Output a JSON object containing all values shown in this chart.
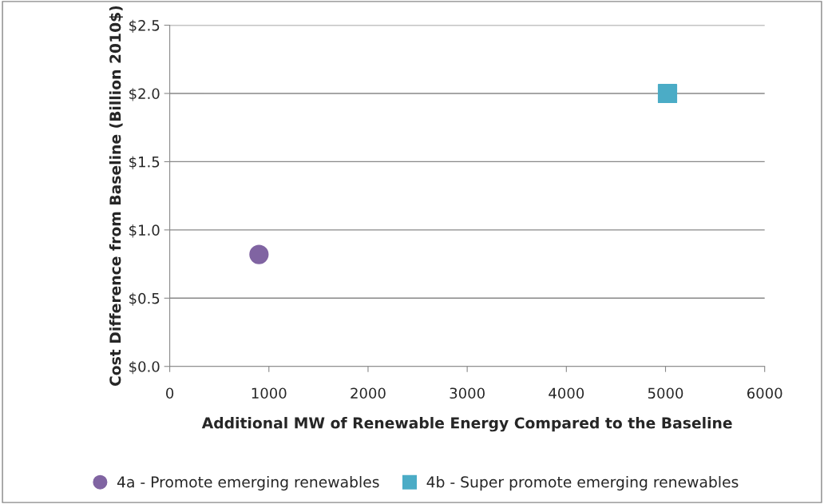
{
  "chart_data": {
    "type": "scatter",
    "xlabel": "Additional MW of Renewable Energy Compared to the Baseline",
    "ylabel": "Cost Difference from Baseline (Billion 2010$)",
    "series": [
      {
        "name": "4a - Promote emerging renewables",
        "color": "#8064a2",
        "marker": "circle",
        "x": [
          900
        ],
        "values": [
          0.82
        ]
      },
      {
        "name": "4b - Super promote emerging renewables",
        "color": "#4bacc6",
        "marker": "square",
        "x": [
          5020
        ],
        "values": [
          2.0
        ]
      }
    ],
    "xlim": [
      0,
      6000
    ],
    "xticks": [
      0,
      1000,
      2000,
      3000,
      4000,
      5000,
      6000
    ],
    "ylim": [
      0,
      2.5
    ],
    "yticks": [
      {
        "value": 0,
        "label": "$0.0"
      },
      {
        "value": 0.5,
        "label": "$0.5"
      },
      {
        "value": 1.0,
        "label": "$1.0"
      },
      {
        "value": 1.5,
        "label": "$1.5"
      },
      {
        "value": 2.0,
        "label": "$2.0"
      },
      {
        "value": 2.5,
        "label": "$2.5"
      }
    ],
    "grid": "y",
    "legend": "bottom"
  }
}
